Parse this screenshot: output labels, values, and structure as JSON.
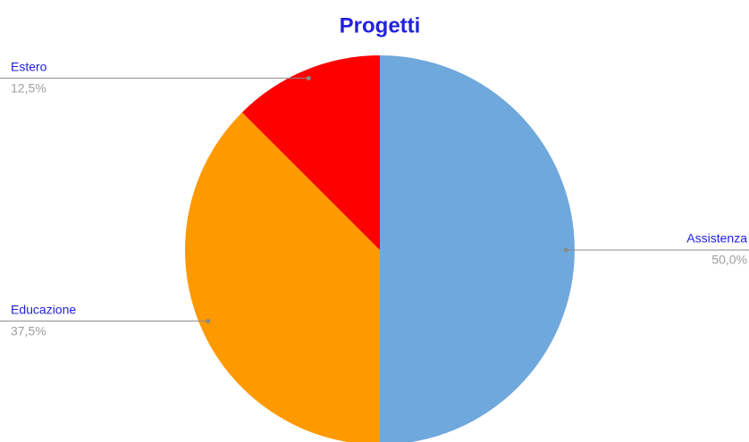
{
  "chart_data": {
    "type": "pie",
    "title": "Progetti",
    "categories": [
      "Assistenza",
      "Educazione",
      "Estero"
    ],
    "values": [
      50,
      37.5,
      12.5
    ],
    "value_labels": [
      "50,0%",
      "37,5%",
      "12,5%"
    ],
    "colors": [
      "#6fa8dc",
      "#ff9900",
      "#ff0000"
    ]
  }
}
